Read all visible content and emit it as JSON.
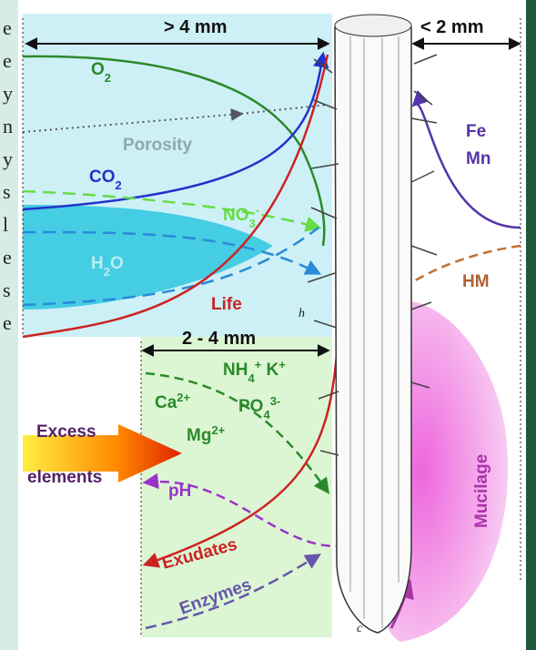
{
  "side_letters": [
    "e",
    "e",
    "y",
    "n",
    "y",
    "s",
    "l",
    "e",
    "s",
    "e"
  ],
  "zones": {
    "outer": "> 4 mm",
    "inner": "< 2 mm",
    "middle": "2 - 4 mm"
  },
  "labels": [
    [
      {
        "t": "O"
      },
      {
        "sub": "2"
      }
    ],
    [
      {
        "t": "Porosity"
      }
    ],
    [
      {
        "t": "CO"
      },
      {
        "sub": "2"
      }
    ],
    [
      {
        "t": "NO"
      },
      {
        "sub": "3"
      },
      {
        "sup": "-"
      }
    ],
    [
      {
        "t": "H"
      },
      {
        "sub": "2"
      },
      {
        "t": "O"
      }
    ],
    [
      {
        "t": "Life"
      }
    ],
    [
      {
        "t": "Fe"
      }
    ],
    [
      {
        "t": "Mn"
      }
    ],
    [
      {
        "t": "HM"
      }
    ],
    [
      {
        "t": "NH"
      },
      {
        "sub": "4"
      },
      {
        "sup": "+"
      },
      {
        "t": " K"
      },
      {
        "sup": "+"
      }
    ],
    [
      {
        "t": "Ca"
      },
      {
        "sup": "2+"
      }
    ],
    [
      {
        "t": "PO"
      },
      {
        "sub": "4"
      },
      {
        "sup": "3-"
      }
    ],
    [
      {
        "t": "Mg"
      },
      {
        "sup": "2+"
      }
    ],
    [
      {
        "t": "Excess"
      }
    ],
    [
      {
        "t": "elements"
      }
    ],
    [
      {
        "t": "pH"
      }
    ],
    [
      {
        "t": "Exudates"
      }
    ],
    [
      {
        "t": "Enzymes"
      }
    ],
    [
      {
        "t": "Mucilage"
      }
    ],
    [
      {
        "t": "h"
      }
    ],
    [
      {
        "t": "c"
      }
    ]
  ]
}
